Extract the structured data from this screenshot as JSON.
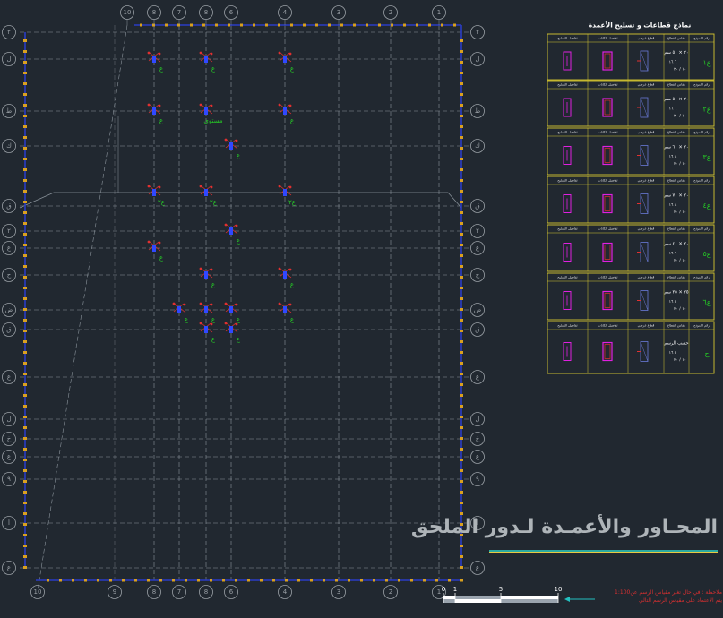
{
  "drawing": {
    "title": "المحـاور والأعمـدة لـدور الملحق",
    "colors": {
      "background": "#212830",
      "grid": "#8b949c",
      "frame": "#2a3cc4",
      "marker": "#d8a020",
      "bubble": "#9aa0a6",
      "column_red": "#e03030",
      "column_blue": "#3048ff",
      "label_green": "#26c826",
      "schedule": "#d8c830",
      "section_magenta": "#e020e0",
      "underline_teal": "#2aa9a0",
      "underline_yellow": "#e8c840",
      "note_red": "#d83030",
      "arrow_cyan": "#22c0c0"
    }
  },
  "axes": {
    "top": [
      "10",
      "8",
      "7",
      "8",
      "6",
      "4",
      "3",
      "2",
      "1"
    ],
    "bottom": [
      "10",
      "9",
      "8",
      "7",
      "8",
      "6",
      "4",
      "3",
      "2",
      "1"
    ],
    "left": [
      "٢",
      "ل",
      "ط",
      "ك",
      "ق",
      "٢",
      "ع",
      "ح",
      "ض",
      "ق",
      "ع",
      "ل",
      "خ",
      "ع",
      "٩",
      "أ",
      "ع"
    ],
    "right": [
      "٢",
      "ل",
      "ط",
      "ك",
      "ق",
      "٢",
      "ع",
      "ح",
      "ض",
      "ق",
      "ع",
      "ل",
      "خ",
      "ع",
      "٩",
      "أ",
      "ع"
    ]
  },
  "columns": [
    {
      "label": "ع"
    },
    {
      "label": "ع"
    },
    {
      "label": "ع"
    },
    {
      "label": "ع"
    },
    {
      "label": "مستوى"
    },
    {
      "label": "ع"
    },
    {
      "label": "ع"
    },
    {
      "label": "ع٢"
    },
    {
      "label": "ع٢"
    },
    {
      "label": "ع٢"
    },
    {
      "label": "ع"
    },
    {
      "label": "ع"
    },
    {
      "label": "ع"
    },
    {
      "label": "ع"
    },
    {
      "label": "ع"
    },
    {
      "label": "ع"
    },
    {
      "label": "ع"
    },
    {
      "label": "ع"
    },
    {
      "label": "ع"
    },
    {
      "label": "ع"
    }
  ],
  "schedule": {
    "title": "نماذج قطاعات و تسليح الأعمدة",
    "headers": [
      "رقم النموذج",
      "مقاس القطاع",
      "قطاع عرضي",
      "تفاصيل الكانات",
      "تفاصيل التسليح"
    ],
    "rows": [
      {
        "code": "ع١",
        "size": "٢٠ × ٥٠ سم",
        "bars": "٦ ١٦",
        "stirrups": "١٠ / ٢٠"
      },
      {
        "code": "ع٢",
        "size": "٢٠ × ٥٠ سم",
        "bars": "٦ ١٦",
        "stirrups": "١٠ / ٢٠"
      },
      {
        "code": "ع٣",
        "size": "٢٠ × ٦٠ سم",
        "bars": "٨ ١٦",
        "stirrups": "١٠ / ٢٠"
      },
      {
        "code": "ع٤",
        "size": "٢٠ × ٧٠ سم",
        "bars": "٨ ١٦",
        "stirrups": "١٠ / ٢٠"
      },
      {
        "code": "ع٥",
        "size": "٢٠ × ٤٠ سم",
        "bars": "٦ ١٦",
        "stirrups": "١٠ / ٢٠"
      },
      {
        "code": "ع٦",
        "size": "٢٥ × ٢٥ سم",
        "bars": "٤ ١٦",
        "stirrups": "١٠ / ٢٠"
      },
      {
        "code": "ح",
        "size": "حسب الرسم",
        "bars": "٤ ١٦",
        "stirrups": "١٠ / ٢٠"
      }
    ]
  },
  "scale_bar": {
    "ticks": [
      "0",
      "1",
      "5",
      "10"
    ]
  },
  "note": {
    "line1": "ملاحظة : في حال تغير مقياس الرسم عن1:100",
    "line2": "يتم الاعتماد على مقياس الرسم التالي"
  }
}
